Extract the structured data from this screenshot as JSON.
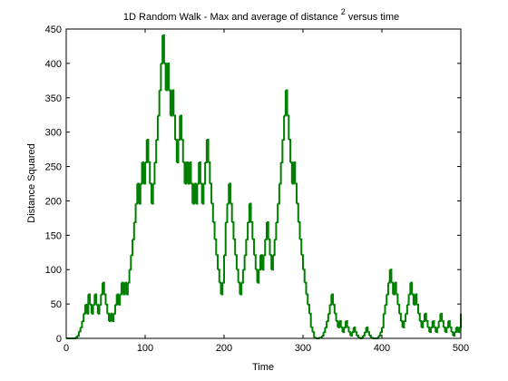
{
  "chart_data": {
    "type": "line",
    "title": {
      "main": "1D Random Walk - Max and average of distance",
      "superscript": "2",
      "suffix": " versus time"
    },
    "xlabel": "Time",
    "ylabel": "Distance Squared",
    "xlim": [
      0,
      500
    ],
    "ylim": [
      0,
      450
    ],
    "xticks": [
      0,
      100,
      200,
      300,
      400,
      500
    ],
    "yticks": [
      0,
      50,
      100,
      150,
      200,
      250,
      300,
      350,
      400,
      450
    ],
    "grid": false,
    "series": [
      {
        "color": "#008000",
        "step": 2,
        "points": [
          [
            0,
            0
          ],
          [
            10,
            0
          ],
          [
            14,
            4
          ],
          [
            18,
            16
          ],
          [
            20,
            25
          ],
          [
            22,
            36
          ],
          [
            24,
            49
          ],
          [
            26,
            36
          ],
          [
            28,
            64
          ],
          [
            30,
            49
          ],
          [
            32,
            36
          ],
          [
            34,
            49
          ],
          [
            36,
            64
          ],
          [
            38,
            49
          ],
          [
            40,
            36
          ],
          [
            42,
            49
          ],
          [
            44,
            64
          ],
          [
            46,
            81
          ],
          [
            48,
            64
          ],
          [
            50,
            49
          ],
          [
            52,
            36
          ],
          [
            54,
            25
          ],
          [
            56,
            36
          ],
          [
            58,
            25
          ],
          [
            60,
            36
          ],
          [
            62,
            49
          ],
          [
            64,
            64
          ],
          [
            66,
            49
          ],
          [
            68,
            64
          ],
          [
            70,
            81
          ],
          [
            72,
            64
          ],
          [
            74,
            81
          ],
          [
            76,
            64
          ],
          [
            78,
            81
          ],
          [
            80,
            100
          ],
          [
            82,
            121
          ],
          [
            84,
            144
          ],
          [
            86,
            169
          ],
          [
            88,
            196
          ],
          [
            90,
            225
          ],
          [
            92,
            196
          ],
          [
            94,
            225
          ],
          [
            96,
            256
          ],
          [
            98,
            225
          ],
          [
            100,
            256
          ],
          [
            102,
            289
          ],
          [
            104,
            256
          ],
          [
            106,
            225
          ],
          [
            108,
            196
          ],
          [
            110,
            225
          ],
          [
            112,
            256
          ],
          [
            114,
            289
          ],
          [
            116,
            324
          ],
          [
            118,
            361
          ],
          [
            120,
            400
          ],
          [
            122,
            441
          ],
          [
            124,
            400
          ],
          [
            126,
            361
          ],
          [
            128,
            400
          ],
          [
            130,
            361
          ],
          [
            132,
            324
          ],
          [
            134,
            361
          ],
          [
            136,
            324
          ],
          [
            138,
            289
          ],
          [
            140,
            256
          ],
          [
            142,
            289
          ],
          [
            144,
            324
          ],
          [
            146,
            289
          ],
          [
            148,
            256
          ],
          [
            150,
            225
          ],
          [
            152,
            256
          ],
          [
            154,
            225
          ],
          [
            156,
            256
          ],
          [
            158,
            225
          ],
          [
            160,
            196
          ],
          [
            162,
            225
          ],
          [
            164,
            196
          ],
          [
            166,
            225
          ],
          [
            168,
            256
          ],
          [
            170,
            225
          ],
          [
            172,
            196
          ],
          [
            174,
            225
          ],
          [
            176,
            256
          ],
          [
            178,
            289
          ],
          [
            180,
            256
          ],
          [
            182,
            225
          ],
          [
            184,
            196
          ],
          [
            186,
            169
          ],
          [
            188,
            144
          ],
          [
            190,
            121
          ],
          [
            192,
            100
          ],
          [
            194,
            81
          ],
          [
            196,
            64
          ],
          [
            198,
            81
          ],
          [
            200,
            121
          ],
          [
            202,
            169
          ],
          [
            204,
            196
          ],
          [
            206,
            225
          ],
          [
            208,
            196
          ],
          [
            210,
            169
          ],
          [
            212,
            144
          ],
          [
            214,
            121
          ],
          [
            216,
            100
          ],
          [
            218,
            81
          ],
          [
            220,
            64
          ],
          [
            222,
            81
          ],
          [
            224,
            100
          ],
          [
            226,
            121
          ],
          [
            228,
            144
          ],
          [
            230,
            169
          ],
          [
            232,
            196
          ],
          [
            234,
            169
          ],
          [
            236,
            144
          ],
          [
            238,
            121
          ],
          [
            240,
            100
          ],
          [
            242,
            81
          ],
          [
            244,
            100
          ],
          [
            246,
            121
          ],
          [
            248,
            100
          ],
          [
            250,
            121
          ],
          [
            252,
            144
          ],
          [
            254,
            169
          ],
          [
            256,
            144
          ],
          [
            258,
            121
          ],
          [
            260,
            100
          ],
          [
            262,
            121
          ],
          [
            264,
            144
          ],
          [
            266,
            169
          ],
          [
            268,
            196
          ],
          [
            270,
            225
          ],
          [
            272,
            256
          ],
          [
            274,
            289
          ],
          [
            276,
            324
          ],
          [
            278,
            361
          ],
          [
            280,
            324
          ],
          [
            282,
            289
          ],
          [
            284,
            256
          ],
          [
            286,
            225
          ],
          [
            288,
            256
          ],
          [
            290,
            225
          ],
          [
            292,
            196
          ],
          [
            294,
            169
          ],
          [
            296,
            144
          ],
          [
            298,
            121
          ],
          [
            300,
            100
          ],
          [
            302,
            81
          ],
          [
            304,
            64
          ],
          [
            306,
            49
          ],
          [
            308,
            36
          ],
          [
            310,
            16
          ],
          [
            312,
            9
          ],
          [
            314,
            1
          ],
          [
            316,
            0
          ],
          [
            322,
            1
          ],
          [
            324,
            4
          ],
          [
            326,
            9
          ],
          [
            328,
            16
          ],
          [
            330,
            25
          ],
          [
            332,
            36
          ],
          [
            334,
            49
          ],
          [
            336,
            64
          ],
          [
            338,
            49
          ],
          [
            340,
            36
          ],
          [
            342,
            25
          ],
          [
            344,
            16
          ],
          [
            346,
            25
          ],
          [
            348,
            16
          ],
          [
            350,
            9
          ],
          [
            352,
            16
          ],
          [
            354,
            25
          ],
          [
            356,
            16
          ],
          [
            358,
            9
          ],
          [
            360,
            4
          ],
          [
            362,
            9
          ],
          [
            364,
            16
          ],
          [
            366,
            9
          ],
          [
            368,
            4
          ],
          [
            370,
            1
          ],
          [
            372,
            0
          ],
          [
            374,
            1
          ],
          [
            376,
            4
          ],
          [
            378,
            9
          ],
          [
            380,
            16
          ],
          [
            382,
            9
          ],
          [
            384,
            4
          ],
          [
            386,
            1
          ],
          [
            388,
            0
          ],
          [
            392,
            0
          ],
          [
            394,
            1
          ],
          [
            396,
            4
          ],
          [
            398,
            9
          ],
          [
            400,
            16
          ],
          [
            402,
            36
          ],
          [
            404,
            49
          ],
          [
            406,
            64
          ],
          [
            408,
            81
          ],
          [
            410,
            100
          ],
          [
            412,
            81
          ],
          [
            414,
            64
          ],
          [
            416,
            81
          ],
          [
            418,
            64
          ],
          [
            420,
            49
          ],
          [
            422,
            36
          ],
          [
            424,
            25
          ],
          [
            426,
            16
          ],
          [
            428,
            25
          ],
          [
            430,
            36
          ],
          [
            432,
            49
          ],
          [
            434,
            64
          ],
          [
            436,
            81
          ],
          [
            438,
            64
          ],
          [
            440,
            49
          ],
          [
            442,
            64
          ],
          [
            444,
            49
          ],
          [
            446,
            36
          ],
          [
            448,
            25
          ],
          [
            450,
            16
          ],
          [
            452,
            25
          ],
          [
            454,
            36
          ],
          [
            456,
            25
          ],
          [
            458,
            16
          ],
          [
            460,
            9
          ],
          [
            462,
            16
          ],
          [
            464,
            25
          ],
          [
            466,
            16
          ],
          [
            468,
            9
          ],
          [
            470,
            16
          ],
          [
            472,
            25
          ],
          [
            474,
            36
          ],
          [
            476,
            25
          ],
          [
            478,
            16
          ],
          [
            480,
            9
          ],
          [
            482,
            16
          ],
          [
            484,
            25
          ],
          [
            486,
            16
          ],
          [
            488,
            9
          ],
          [
            490,
            4
          ],
          [
            492,
            9
          ],
          [
            494,
            16
          ],
          [
            496,
            9
          ],
          [
            498,
            16
          ],
          [
            500,
            36
          ]
        ]
      }
    ]
  }
}
